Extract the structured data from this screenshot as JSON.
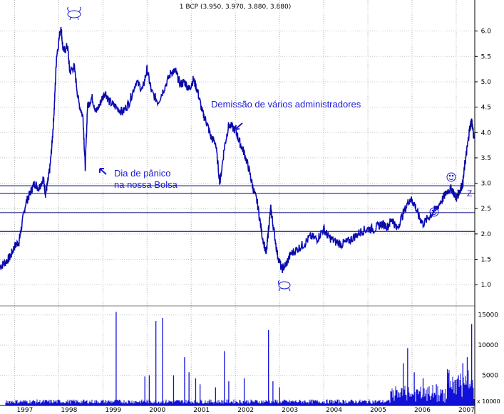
{
  "chart_data": {
    "type": "line",
    "title": "1 BCP (3.950, 3.970, 3.880, 3.880)",
    "xlabel": "",
    "ylabel": "",
    "x_range": [
      1996.67,
      2007.42
    ],
    "ylim": [
      0.75,
      6.5
    ],
    "y_ticks": [
      "1.0",
      "1.5",
      "2.0",
      "2.5",
      "3.0",
      "3.5",
      "4.0",
      "4.5",
      "5.0",
      "5.5",
      "6.0"
    ],
    "x_tick_labels": [
      "1997",
      "1998",
      "1999",
      "2000",
      "2001",
      "2002",
      "2003",
      "2004",
      "2005",
      "2006",
      "2007"
    ],
    "grid": true,
    "price_series": {
      "name": "BCP",
      "points": [
        [
          1996.67,
          1.35
        ],
        [
          1996.8,
          1.45
        ],
        [
          1996.9,
          1.55
        ],
        [
          1997.0,
          1.75
        ],
        [
          1997.1,
          1.85
        ],
        [
          1997.15,
          2.1
        ],
        [
          1997.25,
          2.6
        ],
        [
          1997.35,
          2.8
        ],
        [
          1997.45,
          3.0
        ],
        [
          1997.55,
          2.9
        ],
        [
          1997.65,
          3.1
        ],
        [
          1997.7,
          2.8
        ],
        [
          1997.75,
          3.0
        ],
        [
          1997.8,
          3.3
        ],
        [
          1997.85,
          3.8
        ],
        [
          1997.9,
          4.5
        ],
        [
          1997.95,
          5.5
        ],
        [
          1998.05,
          6.1
        ],
        [
          1998.1,
          5.6
        ],
        [
          1998.2,
          5.7
        ],
        [
          1998.25,
          5.2
        ],
        [
          1998.35,
          5.3
        ],
        [
          1998.45,
          4.6
        ],
        [
          1998.55,
          4.3
        ],
        [
          1998.6,
          3.3
        ],
        [
          1998.65,
          4.5
        ],
        [
          1998.75,
          4.7
        ],
        [
          1998.85,
          4.4
        ],
        [
          1998.95,
          4.6
        ],
        [
          1999.05,
          4.8
        ],
        [
          1999.15,
          4.6
        ],
        [
          1999.3,
          4.5
        ],
        [
          1999.45,
          4.4
        ],
        [
          1999.6,
          4.6
        ],
        [
          1999.75,
          5.0
        ],
        [
          1999.9,
          4.85
        ],
        [
          2000.0,
          5.25
        ],
        [
          2000.1,
          4.8
        ],
        [
          2000.25,
          4.6
        ],
        [
          2000.4,
          4.9
        ],
        [
          2000.55,
          5.2
        ],
        [
          2000.65,
          5.2
        ],
        [
          2000.75,
          4.95
        ],
        [
          2000.85,
          5.0
        ],
        [
          2000.95,
          4.85
        ],
        [
          2001.05,
          5.05
        ],
        [
          2001.15,
          4.8
        ],
        [
          2001.25,
          4.4
        ],
        [
          2001.35,
          4.2
        ],
        [
          2001.45,
          3.9
        ],
        [
          2001.55,
          3.8
        ],
        [
          2001.65,
          3.0
        ],
        [
          2001.75,
          3.7
        ],
        [
          2001.85,
          4.15
        ],
        [
          2002.0,
          4.05
        ],
        [
          2002.1,
          3.8
        ],
        [
          2002.2,
          3.6
        ],
        [
          2002.3,
          3.3
        ],
        [
          2002.4,
          2.9
        ],
        [
          2002.5,
          2.6
        ],
        [
          2002.6,
          2.0
        ],
        [
          2002.7,
          1.6
        ],
        [
          2002.75,
          2.1
        ],
        [
          2002.8,
          2.5
        ],
        [
          2002.85,
          2.2
        ],
        [
          2002.95,
          1.6
        ],
        [
          2003.05,
          1.3
        ],
        [
          2003.15,
          1.4
        ],
        [
          2003.25,
          1.6
        ],
        [
          2003.4,
          1.7
        ],
        [
          2003.55,
          1.8
        ],
        [
          2003.7,
          1.95
        ],
        [
          2003.85,
          1.9
        ],
        [
          2004.0,
          2.1
        ],
        [
          2004.1,
          1.95
        ],
        [
          2004.25,
          1.85
        ],
        [
          2004.4,
          1.8
        ],
        [
          2004.55,
          1.85
        ],
        [
          2004.7,
          1.95
        ],
        [
          2004.85,
          2.05
        ],
        [
          2005.0,
          2.1
        ],
        [
          2005.15,
          2.1
        ],
        [
          2005.3,
          2.2
        ],
        [
          2005.45,
          2.15
        ],
        [
          2005.55,
          2.3
        ],
        [
          2005.65,
          2.1
        ],
        [
          2005.8,
          2.4
        ],
        [
          2005.95,
          2.7
        ],
        [
          2006.05,
          2.6
        ],
        [
          2006.15,
          2.35
        ],
        [
          2006.25,
          2.2
        ],
        [
          2006.4,
          2.35
        ],
        [
          2006.55,
          2.5
        ],
        [
          2006.7,
          2.7
        ],
        [
          2006.8,
          2.85
        ],
        [
          2006.9,
          2.9
        ],
        [
          2007.0,
          2.7
        ],
        [
          2007.05,
          2.8
        ],
        [
          2007.1,
          2.9
        ],
        [
          2007.15,
          3.0
        ],
        [
          2007.2,
          3.4
        ],
        [
          2007.25,
          3.7
        ],
        [
          2007.3,
          4.05
        ],
        [
          2007.35,
          4.25
        ],
        [
          2007.4,
          3.88
        ]
      ]
    },
    "horizontal_lines": [
      2.05,
      2.42,
      2.8,
      2.95
    ],
    "annotations": [
      {
        "text": "Demissão de vários administradores"
      },
      {
        "text": "Dia de pânico"
      },
      {
        "text": "na nossa Bolsa"
      },
      {
        "text": "Z"
      }
    ],
    "volume": {
      "ylim": [
        0,
        16500
      ],
      "y_ticks": [
        "5000",
        "10000",
        "15000"
      ],
      "unit_label": "x 10000",
      "spikes": [
        [
          1999.3,
          15500
        ],
        [
          2000.2,
          14000
        ],
        [
          2000.35,
          14500
        ],
        [
          1999.95,
          4800
        ],
        [
          2000.05,
          5000
        ],
        [
          2000.6,
          5000
        ],
        [
          2000.85,
          8000
        ],
        [
          2000.95,
          5500
        ],
        [
          2001.1,
          4500
        ],
        [
          2001.2,
          3500
        ],
        [
          2001.55,
          3000
        ],
        [
          2001.75,
          9000
        ],
        [
          2001.85,
          4000
        ],
        [
          2002.2,
          4500
        ],
        [
          2002.75,
          12500
        ],
        [
          2002.85,
          4000
        ],
        [
          2003.0,
          3000
        ],
        [
          2005.8,
          7000
        ],
        [
          2005.9,
          9500
        ],
        [
          2006.05,
          5500
        ],
        [
          2006.25,
          4500
        ],
        [
          2006.55,
          3500
        ],
        [
          2006.8,
          6000
        ],
        [
          2007.05,
          5000
        ],
        [
          2007.15,
          7000
        ],
        [
          2007.25,
          8000
        ],
        [
          2007.35,
          13500
        ]
      ]
    }
  }
}
